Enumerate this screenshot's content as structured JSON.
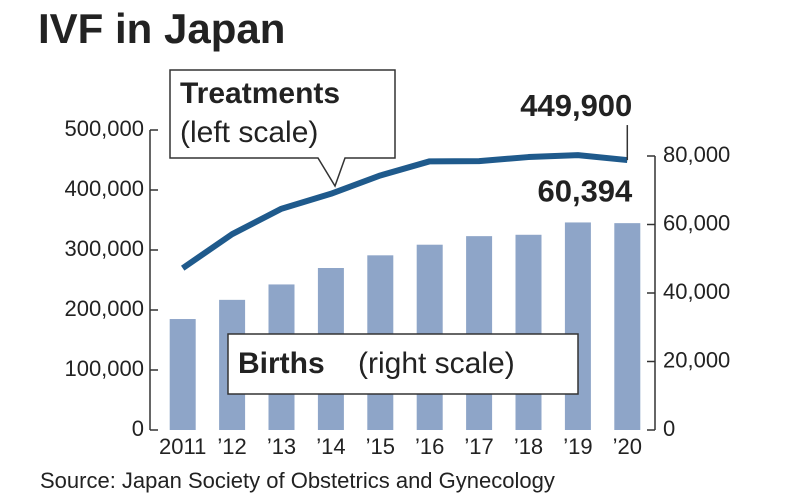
{
  "chart_data": {
    "type": "combo",
    "title": "IVF in Japan",
    "source": "Source: Japan Society of Obstetrics and Gynecology",
    "categories": [
      "2011",
      "’12",
      "’13",
      "’14",
      "’15",
      "’16",
      "’17",
      "’18",
      "’19",
      "’20"
    ],
    "series": [
      {
        "name": "Treatments",
        "annotation": "(left scale)",
        "type": "line",
        "axis": "y",
        "color": "#1f5a8c",
        "values": [
          269700,
          326400,
          368800,
          393700,
          424200,
          447800,
          448200,
          454900,
          458100,
          449900
        ],
        "value_labels": [
          null,
          null,
          null,
          null,
          null,
          null,
          null,
          null,
          null,
          "449,900"
        ]
      },
      {
        "name": "Births",
        "annotation": "(right scale)",
        "type": "bar",
        "axis": "y2",
        "color": "#8ea5c8",
        "values": [
          32400,
          38000,
          42500,
          47300,
          51000,
          54100,
          56600,
          57000,
          60600,
          60394
        ],
        "value_labels": [
          null,
          null,
          null,
          null,
          null,
          null,
          null,
          null,
          null,
          "60,394"
        ]
      }
    ],
    "ylim": [
      0,
      500000
    ],
    "yticks": [
      0,
      {
        "value": 100000,
        "label": "100,000"
      },
      {
        "value": 200000,
        "label": "200,000"
      },
      {
        "value": 300000,
        "label": "300,000"
      },
      {
        "value": 400000,
        "label": "400,000"
      },
      {
        "value": 500000,
        "label": "500,000"
      }
    ],
    "y2lim": [
      0,
      80000
    ],
    "y2ticks": [
      0,
      {
        "value": 20000,
        "label": "20,000"
      },
      {
        "value": 40000,
        "label": "40,000"
      },
      {
        "value": 60000,
        "label": "60,000"
      },
      {
        "value": 80000,
        "label": "80,000"
      }
    ]
  }
}
